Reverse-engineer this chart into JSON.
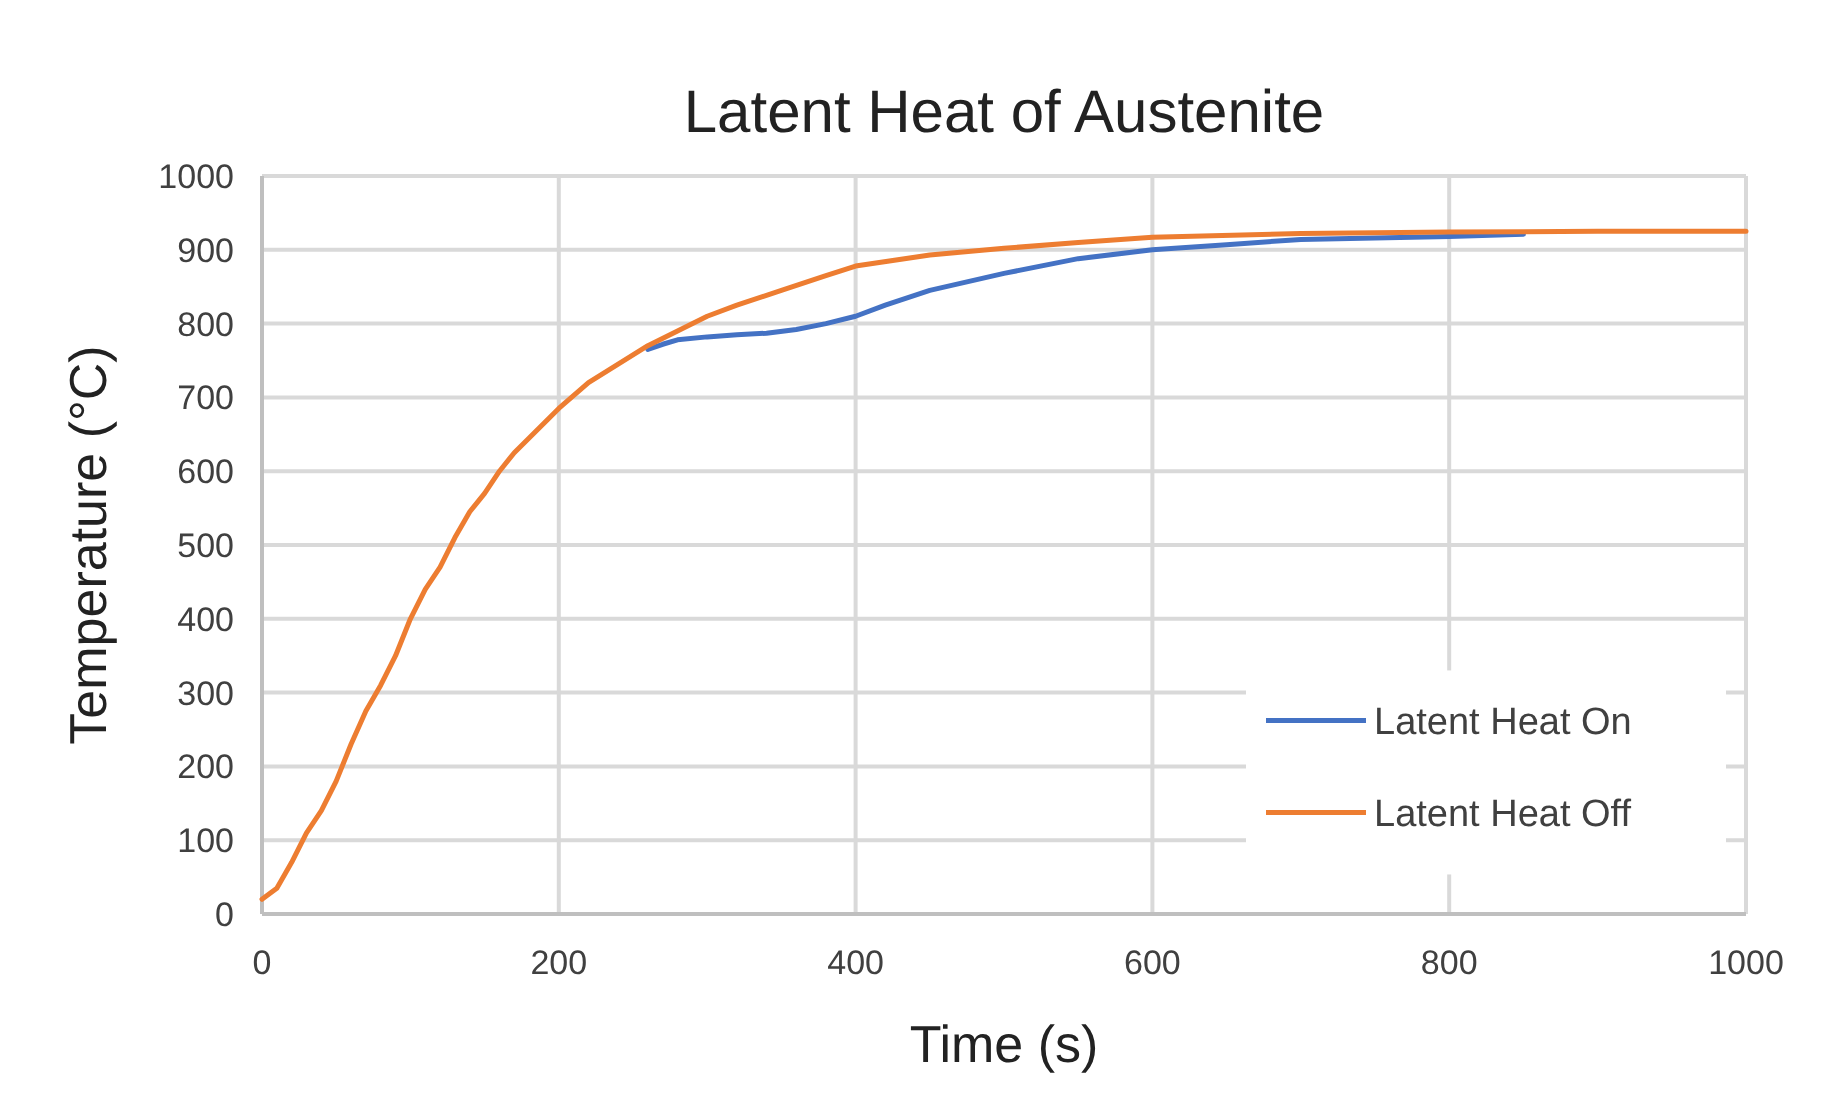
{
  "chart_data": {
    "type": "line",
    "title": "Latent Heat of Austenite",
    "xlabel": "Time (s)",
    "ylabel": "Temperature (°C)",
    "xlim": [
      0,
      1000
    ],
    "xticks": [
      0,
      200,
      400,
      600,
      800,
      1000
    ],
    "ylim": [
      0,
      1000
    ],
    "yticks": [
      0,
      100,
      200,
      300,
      400,
      500,
      600,
      700,
      800,
      900,
      1000
    ],
    "grid": true,
    "legend": "right",
    "marker": "none",
    "line_style": "solid",
    "series": [
      {
        "name": "Latent Heat On",
        "color": "#4472c4",
        "x": [
          260,
          270,
          280,
          300,
          320,
          340,
          360,
          380,
          400,
          420,
          450,
          500,
          550,
          600,
          650,
          700,
          800,
          850
        ],
        "values": [
          765,
          772,
          778,
          782,
          785,
          787,
          792,
          800,
          810,
          825,
          845,
          868,
          888,
          900,
          907,
          914,
          918,
          921
        ]
      },
      {
        "name": "Latent Heat Off",
        "color": "#ed7d31",
        "x": [
          0,
          10,
          20,
          30,
          40,
          50,
          60,
          70,
          80,
          90,
          100,
          110,
          120,
          130,
          140,
          150,
          160,
          170,
          180,
          190,
          200,
          220,
          240,
          260,
          280,
          300,
          320,
          350,
          380,
          400,
          450,
          500,
          550,
          600,
          700,
          800,
          900,
          1000
        ],
        "values": [
          20,
          35,
          70,
          110,
          140,
          180,
          230,
          275,
          310,
          350,
          400,
          440,
          470,
          510,
          545,
          570,
          600,
          625,
          645,
          665,
          685,
          720,
          745,
          770,
          790,
          810,
          825,
          845,
          865,
          878,
          893,
          902,
          910,
          917,
          922,
          924,
          925,
          925
        ]
      }
    ]
  }
}
